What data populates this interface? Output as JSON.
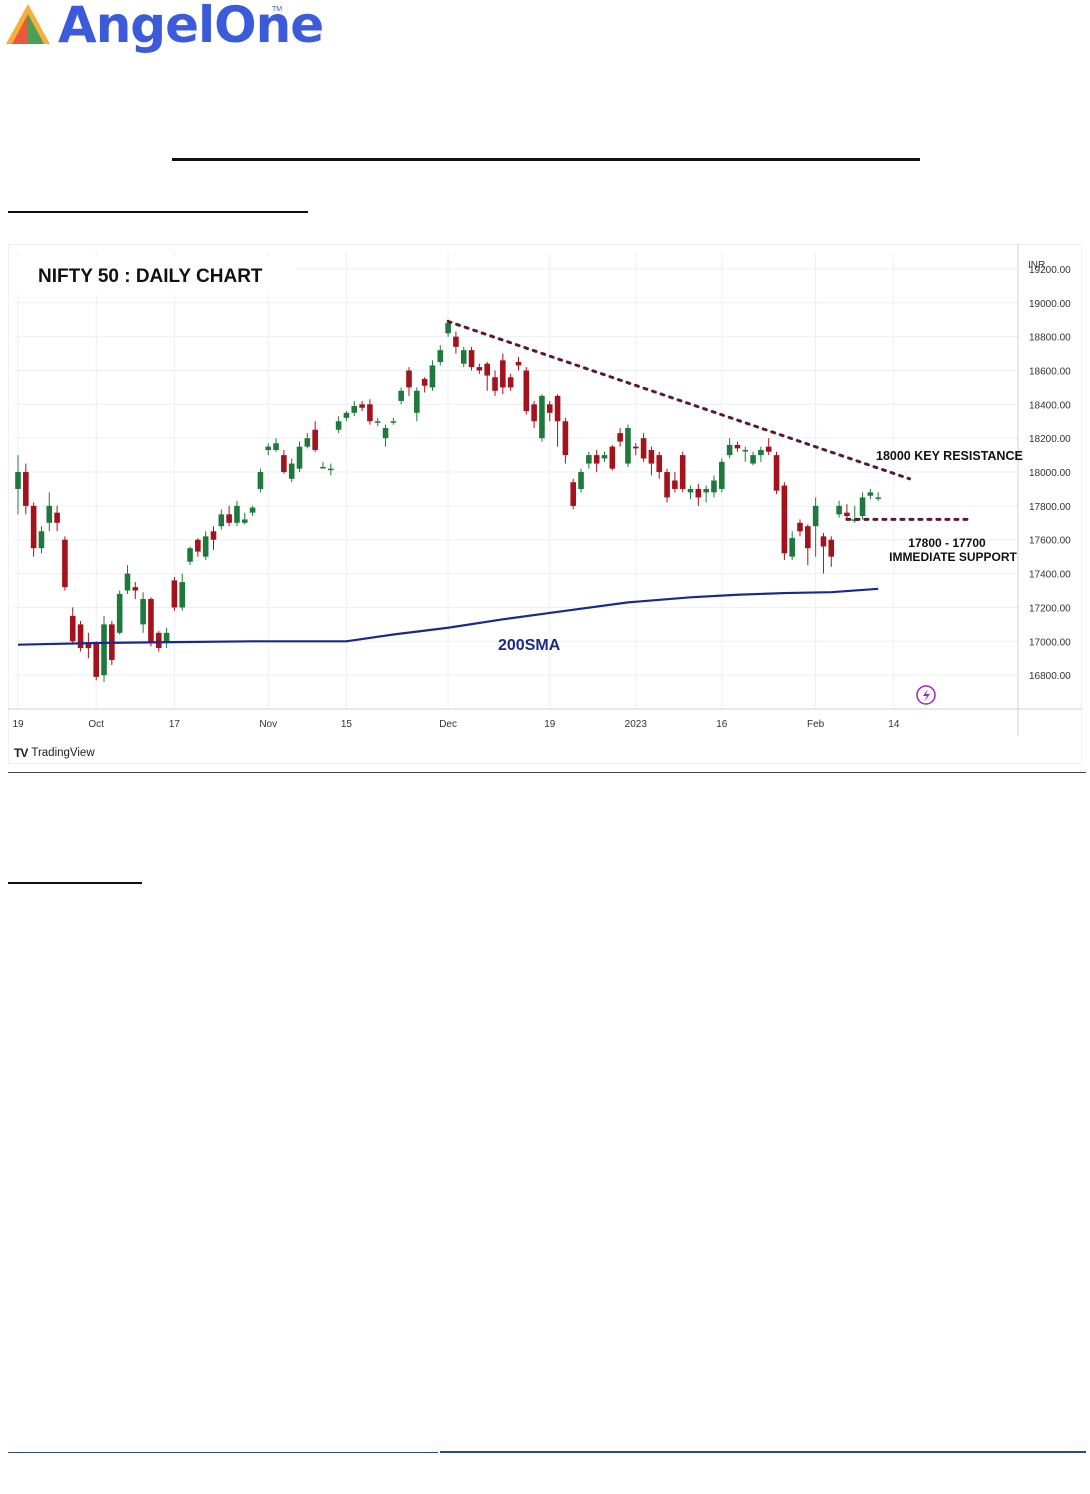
{
  "brand": {
    "name": "AngelOne",
    "trademark": "TM",
    "accent": "#3B5BDB",
    "mark_colors": [
      "#f5a623",
      "#e8483b",
      "#2e9e5b"
    ]
  },
  "chart_data": {
    "type": "candlestick",
    "title": "NIFTY 50 : DAILY CHART",
    "currency_label": "INR",
    "ylim": [
      16600,
      19300
    ],
    "y_ticks": [
      "19200.00",
      "19000.00",
      "18800.00",
      "18600.00",
      "18400.00",
      "18200.00",
      "18000.00",
      "17800.00",
      "17600.00",
      "17400.00",
      "17200.00",
      "17000.00",
      "16800.00"
    ],
    "x_ticks": [
      {
        "label": "19",
        "i": 0
      },
      {
        "label": "Oct",
        "i": 10
      },
      {
        "label": "17",
        "i": 20
      },
      {
        "label": "Nov",
        "i": 32
      },
      {
        "label": "15",
        "i": 42
      },
      {
        "label": "Dec",
        "i": 55
      },
      {
        "label": "19",
        "i": 68
      },
      {
        "label": "2023",
        "i": 79
      },
      {
        "label": "16",
        "i": 90
      },
      {
        "label": "Feb",
        "i": 102
      },
      {
        "label": "14",
        "i": 112
      }
    ],
    "candles": [
      [
        17900,
        18000,
        18100,
        17750
      ],
      [
        18000,
        17800,
        18050,
        17750
      ],
      [
        17800,
        17550,
        17820,
        17500
      ],
      [
        17550,
        17650,
        17680,
        17520
      ],
      [
        17700,
        17800,
        17880,
        17650
      ],
      [
        17760,
        17700,
        17800,
        17650
      ],
      [
        17600,
        17320,
        17620,
        17300
      ],
      [
        17150,
        17000,
        17200,
        16980
      ],
      [
        17100,
        16960,
        17120,
        16940
      ],
      [
        16990,
        16960,
        17050,
        16900
      ],
      [
        16990,
        16790,
        17000,
        16770
      ],
      [
        16800,
        17100,
        17150,
        16760
      ],
      [
        17100,
        16890,
        17120,
        16860
      ],
      [
        17050,
        17280,
        17300,
        17040
      ],
      [
        17300,
        17400,
        17450,
        17280
      ],
      [
        17320,
        17300,
        17350,
        17250
      ],
      [
        17100,
        17250,
        17290,
        17050
      ],
      [
        17250,
        16990,
        17260,
        16970
      ],
      [
        17050,
        16960,
        17060,
        16940
      ],
      [
        16990,
        17050,
        17080,
        16960
      ],
      [
        17360,
        17200,
        17380,
        17180
      ],
      [
        17200,
        17350,
        17400,
        17180
      ],
      [
        17470,
        17550,
        17560,
        17450
      ],
      [
        17600,
        17530,
        17610,
        17500
      ],
      [
        17500,
        17620,
        17650,
        17480
      ],
      [
        17650,
        17600,
        17680,
        17540
      ],
      [
        17680,
        17750,
        17780,
        17660
      ],
      [
        17750,
        17700,
        17800,
        17680
      ],
      [
        17700,
        17800,
        17830,
        17680
      ],
      [
        17700,
        17720,
        17760,
        17690
      ],
      [
        17760,
        17790,
        17800,
        17740
      ],
      [
        17900,
        18000,
        18020,
        17880
      ],
      [
        18130,
        18150,
        18170,
        18100
      ],
      [
        18130,
        18170,
        18200,
        18120
      ],
      [
        18100,
        18000,
        18130,
        17990
      ],
      [
        17960,
        18050,
        18080,
        17940
      ],
      [
        18020,
        18150,
        18180,
        18000
      ],
      [
        18150,
        18200,
        18230,
        18140
      ],
      [
        18250,
        18130,
        18300,
        18120
      ],
      [
        18030,
        18030,
        18060,
        18020
      ],
      [
        18020,
        18020,
        18050,
        17980
      ],
      [
        18250,
        18300,
        18330,
        18230
      ],
      [
        18320,
        18350,
        18360,
        18300
      ],
      [
        18350,
        18390,
        18420,
        18330
      ],
      [
        18400,
        18380,
        18420,
        18360
      ],
      [
        18400,
        18300,
        18430,
        18280
      ],
      [
        18300,
        18300,
        18320,
        18270
      ],
      [
        18200,
        18260,
        18280,
        18150
      ],
      [
        18300,
        18300,
        18320,
        18280
      ],
      [
        18420,
        18480,
        18500,
        18400
      ],
      [
        18600,
        18500,
        18620,
        18450
      ],
      [
        18350,
        18480,
        18500,
        18300
      ],
      [
        18550,
        18510,
        18560,
        18470
      ],
      [
        18500,
        18630,
        18660,
        18480
      ],
      [
        18650,
        18720,
        18750,
        18630
      ],
      [
        18820,
        18880,
        18900,
        18800
      ],
      [
        18800,
        18740,
        18830,
        18700
      ],
      [
        18640,
        18720,
        18740,
        18620
      ],
      [
        18720,
        18620,
        18740,
        18600
      ],
      [
        18620,
        18600,
        18640,
        18580
      ],
      [
        18640,
        18570,
        18650,
        18480
      ],
      [
        18560,
        18480,
        18600,
        18450
      ],
      [
        18660,
        18500,
        18700,
        18460
      ],
      [
        18560,
        18500,
        18580,
        18480
      ],
      [
        18650,
        18630,
        18680,
        18600
      ],
      [
        18600,
        18360,
        18620,
        18340
      ],
      [
        18400,
        18300,
        18420,
        18260
      ],
      [
        18200,
        18450,
        18460,
        18180
      ],
      [
        18400,
        18350,
        18420,
        18300
      ],
      [
        18450,
        18300,
        18460,
        18150
      ],
      [
        18300,
        18100,
        18320,
        18050
      ],
      [
        17940,
        17800,
        17960,
        17780
      ],
      [
        17900,
        18000,
        18020,
        17880
      ],
      [
        18050,
        18100,
        18120,
        18020
      ],
      [
        18100,
        18050,
        18130,
        18000
      ],
      [
        18080,
        18100,
        18120,
        18060
      ],
      [
        18150,
        18020,
        18160,
        18010
      ],
      [
        18230,
        18180,
        18260,
        18150
      ],
      [
        18050,
        18260,
        18280,
        18030
      ],
      [
        18150,
        18140,
        18170,
        18100
      ],
      [
        18200,
        18080,
        18230,
        18060
      ],
      [
        18130,
        18050,
        18150,
        17980
      ],
      [
        18100,
        18000,
        18120,
        17960
      ],
      [
        18000,
        17850,
        18020,
        17820
      ],
      [
        17950,
        17900,
        18000,
        17880
      ],
      [
        18100,
        17900,
        18120,
        17880
      ],
      [
        17880,
        17900,
        17920,
        17840
      ],
      [
        17900,
        17850,
        17930,
        17800
      ],
      [
        17880,
        17900,
        17920,
        17820
      ],
      [
        17880,
        17950,
        17980,
        17850
      ],
      [
        17900,
        18060,
        18080,
        17880
      ],
      [
        18100,
        18160,
        18200,
        18080
      ],
      [
        18160,
        18140,
        18180,
        18120
      ],
      [
        18130,
        18130,
        18150,
        18060
      ],
      [
        18050,
        18100,
        18120,
        18040
      ],
      [
        18100,
        18130,
        18150,
        18060
      ],
      [
        18150,
        18120,
        18200,
        18100
      ],
      [
        18100,
        17890,
        18120,
        17870
      ],
      [
        17920,
        17520,
        17940,
        17480
      ],
      [
        17500,
        17610,
        17650,
        17480
      ],
      [
        17700,
        17650,
        17720,
        17620
      ],
      [
        17680,
        17550,
        17690,
        17450
      ],
      [
        17680,
        17800,
        17850,
        17500
      ],
      [
        17620,
        17560,
        17640,
        17400
      ],
      [
        17600,
        17500,
        17620,
        17440
      ],
      [
        17750,
        17800,
        17830,
        17730
      ],
      [
        17760,
        17740,
        17810,
        17720
      ],
      [
        17720,
        17720,
        17800,
        17700
      ],
      [
        17740,
        17850,
        17880,
        17720
      ],
      [
        17860,
        17880,
        17900,
        17840
      ],
      [
        17850,
        17850,
        17880,
        17830
      ]
    ],
    "sma200": [
      [
        0,
        16980
      ],
      [
        10,
        16990
      ],
      [
        20,
        16995
      ],
      [
        30,
        17000
      ],
      [
        42,
        17000
      ],
      [
        48,
        17040
      ],
      [
        55,
        17080
      ],
      [
        62,
        17130
      ],
      [
        70,
        17180
      ],
      [
        78,
        17230
      ],
      [
        86,
        17260
      ],
      [
        92,
        17275
      ],
      [
        98,
        17285
      ],
      [
        104,
        17290
      ],
      [
        110,
        17310
      ]
    ],
    "annotations": {
      "resistance_label": "18000 KEY RESISTANCE",
      "support_label_line1": "17800 - 17700",
      "support_label_line2": "IMMEDIATE SUPPORT",
      "sma_label": "200SMA",
      "resistance_start": [
        55,
        18890
      ],
      "resistance_end": [
        114,
        17960
      ],
      "support_start": [
        106,
        17720
      ],
      "support_end": [
        122,
        17720
      ]
    },
    "colors": {
      "up": "#1e7a3c",
      "down": "#a4121c",
      "sma": "#1b2a86",
      "trend": "#5b1a2e",
      "grid": "#eceff4"
    }
  },
  "footer": {
    "watermark": "TradingView",
    "watermark_mark": "TV"
  }
}
